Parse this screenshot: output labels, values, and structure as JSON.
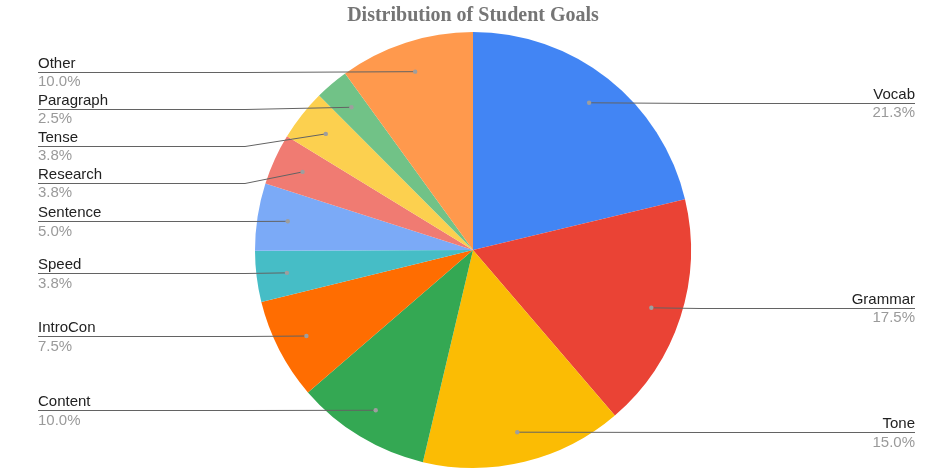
{
  "chart_data": {
    "type": "pie",
    "title": "Distribution of Student Goals",
    "categories": [
      "Vocab",
      "Grammar",
      "Tone",
      "Content",
      "IntroCon",
      "Speed",
      "Sentence",
      "Research",
      "Tense",
      "Paragraph",
      "Other"
    ],
    "values": [
      21.3,
      17.5,
      15.0,
      10.0,
      7.5,
      3.8,
      5.0,
      3.8,
      3.8,
      2.5,
      10.0
    ],
    "value_labels": [
      "21.3%",
      "17.5%",
      "15.0%",
      "10.0%",
      "7.5%",
      "3.8%",
      "5.0%",
      "3.8%",
      "3.8%",
      "2.5%",
      "10.0%"
    ],
    "colors": [
      "#4285f4",
      "#ea4335",
      "#fbbc04",
      "#34a853",
      "#ff6d01",
      "#46bdc6",
      "#7baaf7",
      "#f07b72",
      "#fcd04f",
      "#71c287",
      "#ff994d"
    ],
    "data_labels": true
  }
}
